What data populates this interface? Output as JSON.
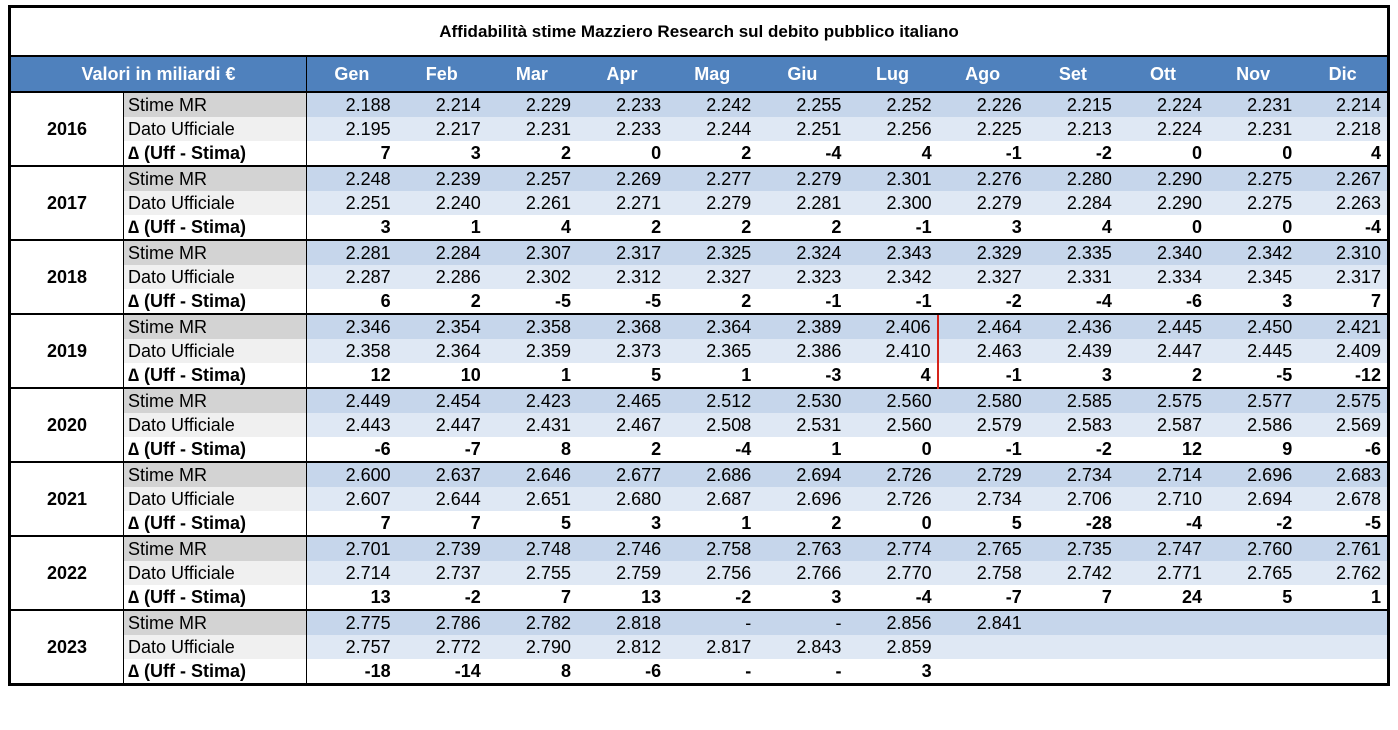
{
  "title": "Affidabilità stime Mazziero Research sul debito pubblico italiano",
  "header": {
    "label": "Valori in miliardi €",
    "months": [
      "Gen",
      "Feb",
      "Mar",
      "Apr",
      "Mag",
      "Giu",
      "Lug",
      "Ago",
      "Set",
      "Ott",
      "Nov",
      "Dic"
    ]
  },
  "groups": [
    {
      "year": "2016",
      "rows": [
        {
          "label": "Stime MR",
          "values": [
            "2.188",
            "2.214",
            "2.229",
            "2.233",
            "2.242",
            "2.255",
            "2.252",
            "2.226",
            "2.215",
            "2.224",
            "2.231",
            "2.214"
          ]
        },
        {
          "label": "Dato Ufficiale",
          "values": [
            "2.195",
            "2.217",
            "2.231",
            "2.233",
            "2.244",
            "2.251",
            "2.256",
            "2.225",
            "2.213",
            "2.224",
            "2.231",
            "2.218"
          ]
        },
        {
          "label": "∆ (Uff - Stima)",
          "values": [
            "7",
            "3",
            "2",
            "0",
            "2",
            "-4",
            "4",
            "-1",
            "-2",
            "0",
            "0",
            "4"
          ]
        }
      ]
    },
    {
      "year": "2017",
      "rows": [
        {
          "label": "Stime MR",
          "values": [
            "2.248",
            "2.239",
            "2.257",
            "2.269",
            "2.277",
            "2.279",
            "2.301",
            "2.276",
            "2.280",
            "2.290",
            "2.275",
            "2.267"
          ]
        },
        {
          "label": "Dato Ufficiale",
          "values": [
            "2.251",
            "2.240",
            "2.261",
            "2.271",
            "2.279",
            "2.281",
            "2.300",
            "2.279",
            "2.284",
            "2.290",
            "2.275",
            "2.263"
          ]
        },
        {
          "label": "∆ (Uff - Stima)",
          "values": [
            "3",
            "1",
            "4",
            "2",
            "2",
            "2",
            "-1",
            "3",
            "4",
            "0",
            "0",
            "-4"
          ]
        }
      ]
    },
    {
      "year": "2018",
      "rows": [
        {
          "label": "Stime MR",
          "values": [
            "2.281",
            "2.284",
            "2.307",
            "2.317",
            "2.325",
            "2.324",
            "2.343",
            "2.329",
            "2.335",
            "2.340",
            "2.342",
            "2.310"
          ]
        },
        {
          "label": "Dato Ufficiale",
          "values": [
            "2.287",
            "2.286",
            "2.302",
            "2.312",
            "2.327",
            "2.323",
            "2.342",
            "2.327",
            "2.331",
            "2.334",
            "2.345",
            "2.317"
          ]
        },
        {
          "label": "∆ (Uff - Stima)",
          "values": [
            "6",
            "2",
            "-5",
            "-5",
            "2",
            "-1",
            "-1",
            "-2",
            "-4",
            "-6",
            "3",
            "7"
          ]
        }
      ]
    },
    {
      "year": "2019",
      "rows": [
        {
          "label": "Stime MR",
          "values": [
            "2.346",
            "2.354",
            "2.358",
            "2.368",
            "2.364",
            "2.389",
            "2.406",
            "2.464",
            "2.436",
            "2.445",
            "2.450",
            "2.421"
          ]
        },
        {
          "label": "Dato Ufficiale",
          "values": [
            "2.358",
            "2.364",
            "2.359",
            "2.373",
            "2.365",
            "2.386",
            "2.410",
            "2.463",
            "2.439",
            "2.447",
            "2.445",
            "2.409"
          ]
        },
        {
          "label": "∆ (Uff - Stima)",
          "values": [
            "12",
            "10",
            "1",
            "5",
            "1",
            "-3",
            "4",
            "-1",
            "3",
            "2",
            "-5",
            "-12"
          ]
        }
      ]
    },
    {
      "year": "2020",
      "rows": [
        {
          "label": "Stime MR",
          "values": [
            "2.449",
            "2.454",
            "2.423",
            "2.465",
            "2.512",
            "2.530",
            "2.560",
            "2.580",
            "2.585",
            "2.575",
            "2.577",
            "2.575"
          ]
        },
        {
          "label": "Dato Ufficiale",
          "values": [
            "2.443",
            "2.447",
            "2.431",
            "2.467",
            "2.508",
            "2.531",
            "2.560",
            "2.579",
            "2.583",
            "2.587",
            "2.586",
            "2.569"
          ]
        },
        {
          "label": "∆ (Uff - Stima)",
          "values": [
            "-6",
            "-7",
            "8",
            "2",
            "-4",
            "1",
            "0",
            "-1",
            "-2",
            "12",
            "9",
            "-6"
          ]
        }
      ]
    },
    {
      "year": "2021",
      "rows": [
        {
          "label": "Stime MR",
          "values": [
            "2.600",
            "2.637",
            "2.646",
            "2.677",
            "2.686",
            "2.694",
            "2.726",
            "2.729",
            "2.734",
            "2.714",
            "2.696",
            "2.683"
          ]
        },
        {
          "label": "Dato Ufficiale",
          "values": [
            "2.607",
            "2.644",
            "2.651",
            "2.680",
            "2.687",
            "2.696",
            "2.726",
            "2.734",
            "2.706",
            "2.710",
            "2.694",
            "2.678"
          ]
        },
        {
          "label": "∆ (Uff - Stima)",
          "values": [
            "7",
            "7",
            "5",
            "3",
            "1",
            "2",
            "0",
            "5",
            "-28",
            "-4",
            "-2",
            "-5"
          ]
        }
      ]
    },
    {
      "year": "2022",
      "rows": [
        {
          "label": "Stime MR",
          "values": [
            "2.701",
            "2.739",
            "2.748",
            "2.746",
            "2.758",
            "2.763",
            "2.774",
            "2.765",
            "2.735",
            "2.747",
            "2.760",
            "2.761"
          ]
        },
        {
          "label": "Dato Ufficiale",
          "values": [
            "2.714",
            "2.737",
            "2.755",
            "2.759",
            "2.756",
            "2.766",
            "2.770",
            "2.758",
            "2.742",
            "2.771",
            "2.765",
            "2.762"
          ]
        },
        {
          "label": "∆ (Uff - Stima)",
          "values": [
            "13",
            "-2",
            "7",
            "13",
            "-2",
            "3",
            "-4",
            "-7",
            "7",
            "24",
            "5",
            "1"
          ]
        }
      ]
    },
    {
      "year": "2023",
      "rows": [
        {
          "label": "Stime MR",
          "values": [
            "2.775",
            "2.786",
            "2.782",
            "2.818",
            "-",
            "-",
            "2.856",
            "2.841"
          ]
        },
        {
          "label": "Dato Ufficiale",
          "values": [
            "2.757",
            "2.772",
            "2.790",
            "2.812",
            "2.817",
            "2.843",
            "2.859"
          ]
        },
        {
          "label": "∆ (Uff - Stima)",
          "values": [
            "-18",
            "-14",
            "8",
            "-6",
            "-",
            "-",
            "3"
          ]
        }
      ]
    }
  ]
}
